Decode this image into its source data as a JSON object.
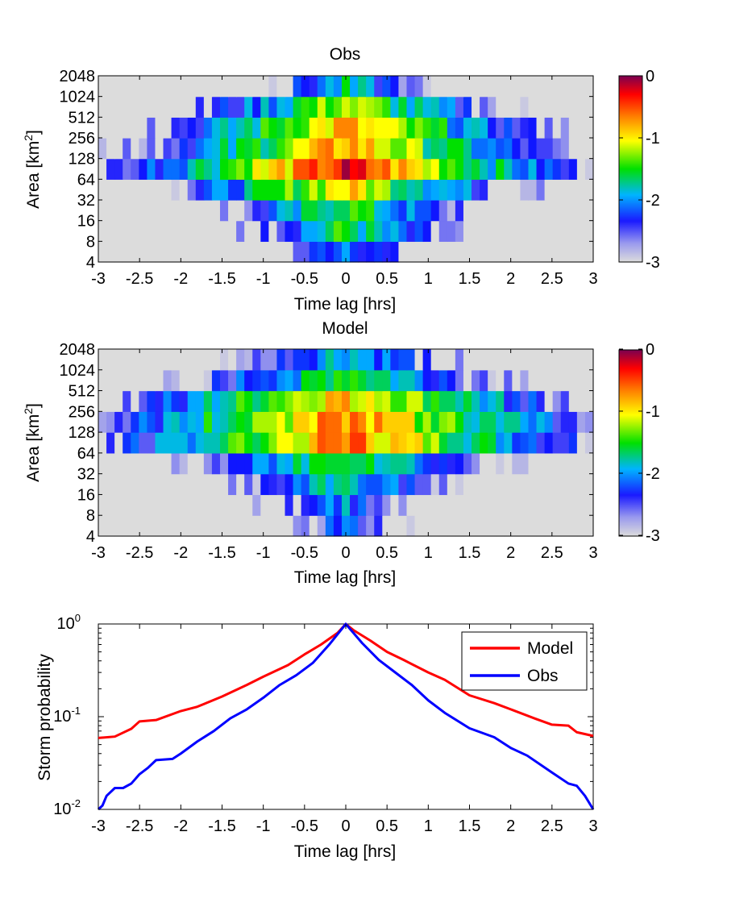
{
  "figure": {
    "colorbar_ticks": [
      "0",
      "-1",
      "-2",
      "-3"
    ],
    "colorbar_values": [
      0,
      -1,
      -2,
      -3
    ],
    "colormap": [
      "#dcdcdc",
      "#9090ee",
      "#1010ff",
      "#00b4ff",
      "#00e000",
      "#ffff00",
      "#ff8000",
      "#ff0000",
      "#7a0050"
    ]
  },
  "chart_data": [
    {
      "type": "heatmap",
      "title": "Obs",
      "xlabel": "Time lag [hrs]",
      "ylabel": "Area [km",
      "ylabel_sup": "2",
      "ylabel_close": "]",
      "x_ticks": [
        "-3",
        "-2.5",
        "-2",
        "-1.5",
        "-1",
        "-0.5",
        "0",
        "0.5",
        "1",
        "1.5",
        "2",
        "2.5",
        "3"
      ],
      "x_tick_values": [
        -3,
        -2.5,
        -2,
        -1.5,
        -1,
        -0.5,
        0,
        0.5,
        1,
        1.5,
        2,
        2.5,
        3
      ],
      "y_ticks": [
        "4",
        "8",
        "16",
        "32",
        "64",
        "128",
        "256",
        "512",
        "1024",
        "2048"
      ],
      "xlim": [
        -3,
        3
      ],
      "rows": 9,
      "cols": 61,
      "value_description": "log10 probability",
      "zlim": [
        -3,
        0
      ],
      "row_peak": [
        -1.9,
        -1.5,
        -1.4,
        -0.9,
        -0.3,
        -0.7,
        -0.8,
        -1.1,
        -1.8
      ],
      "row_width": [
        1.3,
        1.5,
        1.7,
        1.9,
        2.0,
        2.0,
        2.0,
        1.8,
        1.5
      ],
      "seed": 7
    },
    {
      "type": "heatmap",
      "title": "Model",
      "xlabel": "Time lag [hrs]",
      "ylabel": "Area [km",
      "ylabel_sup": "2",
      "ylabel_close": "]",
      "x_ticks": [
        "-3",
        "-2.5",
        "-2",
        "-1.5",
        "-1",
        "-0.5",
        "0",
        "0.5",
        "1",
        "1.5",
        "2",
        "2.5",
        "3"
      ],
      "x_tick_values": [
        -3,
        -2.5,
        -2,
        -1.5,
        -1,
        -0.5,
        0,
        0.5,
        1,
        1.5,
        2,
        2.5,
        3
      ],
      "y_ticks": [
        "4",
        "8",
        "16",
        "32",
        "64",
        "128",
        "256",
        "512",
        "1024",
        "2048"
      ],
      "xlim": [
        -3,
        3
      ],
      "rows": 9,
      "cols": 61,
      "value_description": "log10 probability",
      "zlim": [
        -3,
        0
      ],
      "row_peak": [
        -2.2,
        -2.0,
        -1.7,
        -1.3,
        -0.6,
        -0.6,
        -0.8,
        -1.4,
        -1.8
      ],
      "row_width": [
        1.5,
        1.6,
        1.8,
        2.0,
        2.3,
        2.4,
        2.4,
        2.2,
        2.0
      ],
      "seed": 19
    },
    {
      "type": "line",
      "xlabel": "Time lag [hrs]",
      "ylabel": "Storm probability",
      "yscale": "log",
      "xlim": [
        -3,
        3
      ],
      "ylim": [
        0.01,
        1
      ],
      "x_ticks": [
        "-3",
        "-2.5",
        "-2",
        "-1.5",
        "-1",
        "-0.5",
        "0",
        "0.5",
        "1",
        "1.5",
        "2",
        "2.5",
        "3"
      ],
      "x_tick_values": [
        -3,
        -2.5,
        -2,
        -1.5,
        -1,
        -0.5,
        0,
        0.5,
        1,
        1.5,
        2,
        2.5,
        3
      ],
      "y_ticks": [
        {
          "base": "10",
          "exp": "-2",
          "value": 0.01
        },
        {
          "base": "10",
          "exp": "-1",
          "value": 0.1
        },
        {
          "base": "10",
          "exp": "0",
          "value": 1
        }
      ],
      "legend_position": "top-right",
      "series": [
        {
          "name": "Model",
          "color": "#ff0000",
          "x": [
            -3,
            -2.8,
            -2.6,
            -2.5,
            -2.3,
            -2.0,
            -1.8,
            -1.5,
            -1.2,
            -1.0,
            -0.7,
            -0.5,
            -0.3,
            -0.1,
            0,
            0.1,
            0.3,
            0.5,
            0.7,
            1.0,
            1.2,
            1.5,
            1.8,
            2.0,
            2.3,
            2.5,
            2.7,
            2.8,
            3.0
          ],
          "y": [
            0.059,
            0.061,
            0.074,
            0.089,
            0.092,
            0.115,
            0.128,
            0.165,
            0.22,
            0.27,
            0.36,
            0.47,
            0.6,
            0.8,
            1.0,
            0.85,
            0.66,
            0.5,
            0.41,
            0.3,
            0.25,
            0.17,
            0.14,
            0.12,
            0.095,
            0.082,
            0.08,
            0.068,
            0.062
          ]
        },
        {
          "name": "Obs",
          "color": "#0000ff",
          "x": [
            -3,
            -2.95,
            -2.9,
            -2.8,
            -2.7,
            -2.6,
            -2.5,
            -2.4,
            -2.3,
            -2.1,
            -2.0,
            -1.8,
            -1.6,
            -1.4,
            -1.2,
            -1.0,
            -0.8,
            -0.6,
            -0.4,
            -0.2,
            0,
            0.2,
            0.4,
            0.6,
            0.8,
            1.0,
            1.2,
            1.5,
            1.8,
            2.0,
            2.2,
            2.5,
            2.7,
            2.8,
            2.9,
            3.0
          ],
          "y": [
            0.01,
            0.011,
            0.014,
            0.017,
            0.017,
            0.019,
            0.024,
            0.028,
            0.034,
            0.035,
            0.04,
            0.054,
            0.07,
            0.096,
            0.12,
            0.16,
            0.22,
            0.28,
            0.38,
            0.6,
            1.0,
            0.62,
            0.41,
            0.3,
            0.22,
            0.15,
            0.11,
            0.075,
            0.06,
            0.046,
            0.038,
            0.025,
            0.019,
            0.018,
            0.014,
            0.01
          ]
        }
      ]
    }
  ]
}
